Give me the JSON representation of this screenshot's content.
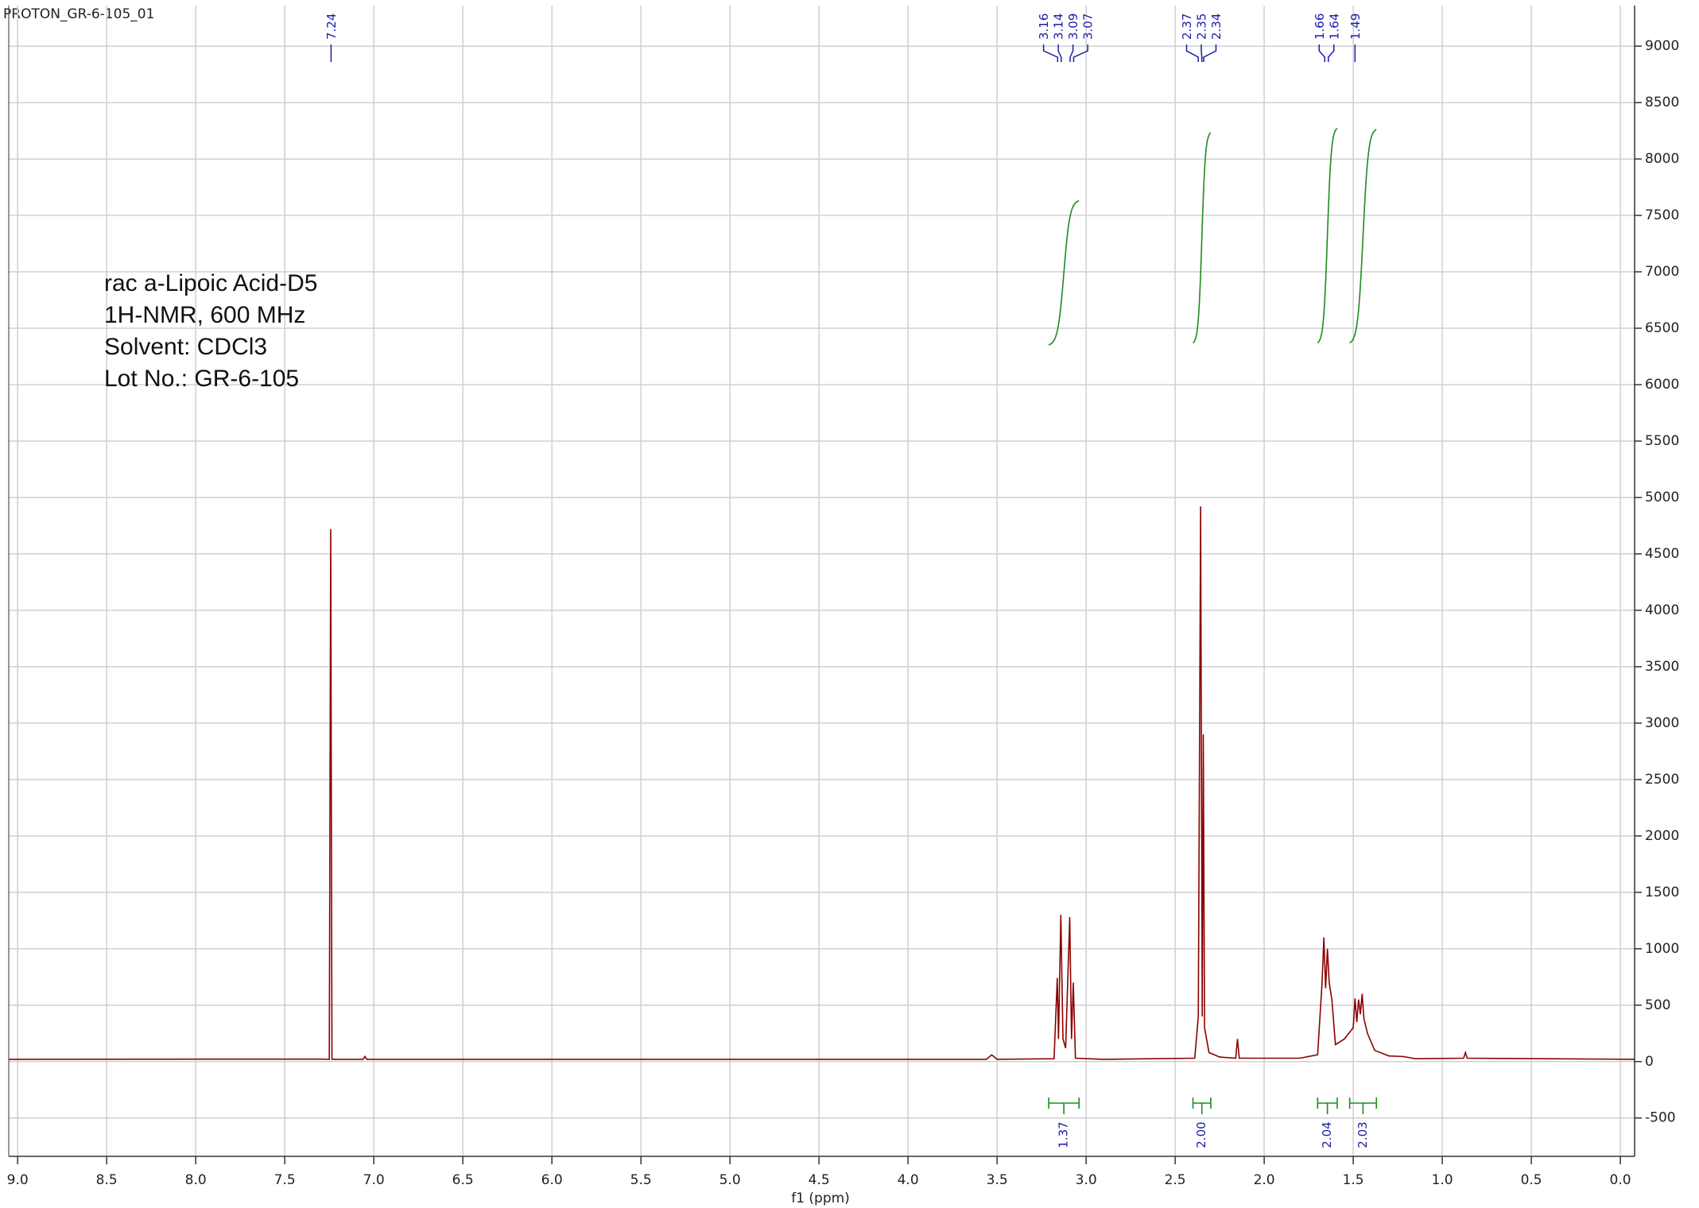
{
  "chart_data": {
    "type": "line",
    "title": "PROTON_GR-6-105_01",
    "annotations": [
      "rac a-Lipoic Acid-D5",
      "1H-NMR, 600 MHz",
      "Solvent: CDCl3",
      "Lot No.: GR-6-105"
    ],
    "xlabel": "f1 (ppm)",
    "xlim": [
      9.05,
      -0.08
    ],
    "xticks": [
      {
        "value": 9,
        "label": "9.0"
      },
      8.5,
      {
        "value": 8,
        "label": "8.0"
      },
      7.5,
      {
        "value": 7,
        "label": "7.0"
      },
      6.5,
      {
        "value": 6,
        "label": "6.0"
      },
      5.5,
      {
        "value": 5,
        "label": "5.0"
      },
      4.5,
      {
        "value": 4,
        "label": "4.0"
      },
      3.5,
      {
        "value": 3,
        "label": "3.0"
      },
      2.5,
      {
        "value": 2,
        "label": "2.0"
      },
      1.5,
      {
        "value": 1,
        "label": "1.0"
      },
      0.5,
      {
        "value": 0,
        "label": "0.0"
      }
    ],
    "ylim": [
      -840,
      9360
    ],
    "yticks": [
      -500,
      0,
      500,
      1000,
      1500,
      2000,
      2500,
      3000,
      3500,
      4000,
      4500,
      5000,
      5500,
      6000,
      6500,
      7000,
      7500,
      8000,
      8500,
      9000
    ],
    "grid": true,
    "x": [
      9.05,
      7.3,
      7.25,
      7.242,
      7.235,
      7.06,
      7.05,
      7.04,
      3.56,
      3.53,
      3.5,
      3.18,
      3.162,
      3.155,
      3.142,
      3.13,
      3.115,
      3.092,
      3.082,
      3.072,
      3.06,
      2.9,
      2.39,
      2.37,
      2.357,
      2.348,
      2.342,
      2.335,
      2.31,
      2.25,
      2.16,
      2.15,
      2.14,
      1.8,
      1.7,
      1.675,
      1.665,
      1.655,
      1.645,
      1.635,
      1.62,
      1.6,
      1.55,
      1.5,
      1.49,
      1.48,
      1.47,
      1.46,
      1.45,
      1.44,
      1.42,
      1.38,
      1.3,
      1.22,
      1.15,
      0.88,
      0.87,
      0.86,
      -0.08
    ],
    "series": [
      {
        "color": "#8b0000",
        "values": [
          20,
          22,
          20,
          4720,
          20,
          20,
          45,
          20,
          20,
          60,
          20,
          25,
          740,
          200,
          1300,
          200,
          120,
          1280,
          200,
          700,
          30,
          20,
          30,
          400,
          4920,
          400,
          2900,
          300,
          80,
          40,
          30,
          200,
          30,
          30,
          60,
          700,
          1100,
          650,
          1000,
          700,
          550,
          150,
          200,
          300,
          560,
          350,
          550,
          420,
          600,
          380,
          250,
          100,
          50,
          45,
          25,
          30,
          80,
          30,
          20
        ]
      }
    ],
    "peak_labels": [
      7.24,
      3.16,
      3.14,
      3.09,
      3.07,
      2.37,
      2.35,
      2.34,
      1.66,
      1.64,
      1.49
    ],
    "peak_color": "#1c1ca8",
    "integrals": {
      "color": "#1e8c1e",
      "values": [
        1.37,
        2.0,
        2.04,
        2.03
      ],
      "value_labels": [
        "1.37",
        "2.00",
        "2.04",
        "2.03"
      ],
      "ranges": [
        [
          3.21,
          3.04
        ],
        [
          2.4,
          2.3
        ],
        [
          1.7,
          1.59
        ],
        [
          1.52,
          1.37
        ]
      ]
    }
  }
}
